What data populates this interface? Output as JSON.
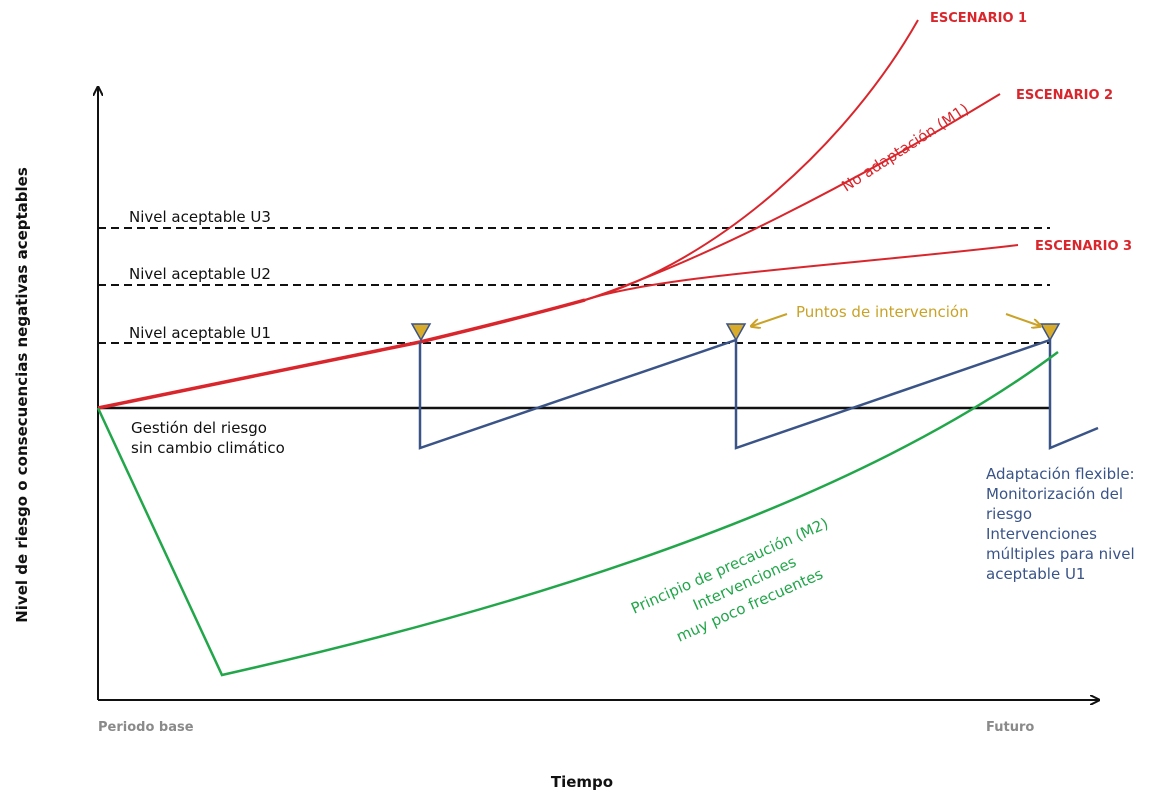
{
  "axes": {
    "y_label": "Nivel de riesgo o consecuencias negativas aceptables",
    "x_label": "Tiempo",
    "x_start": "Periodo base",
    "x_end": "Futuro"
  },
  "levels": {
    "u3": "Nivel aceptable U3",
    "u2": "Nivel aceptable U2",
    "u1": "Nivel aceptable U1"
  },
  "baseline": {
    "line1": "Gestión del riesgo",
    "line2": "sin cambio climático"
  },
  "scenarios": {
    "s1": "ESCENARIO 1",
    "s2": "ESCENARIO 2",
    "s3": "ESCENARIO 3",
    "no_adaptation": "No adaptación (M1)"
  },
  "intervention_points": "Puntos de intervención",
  "precaution": {
    "line1": "Principio de precaución (M2)",
    "line2": "Intervenciones",
    "line3": "muy poco frecuentes"
  },
  "flexible": [
    "Adaptación flexible:",
    "Monitorización del",
    "riesgo",
    "Intervenciones",
    "múltiples para nivel",
    "aceptable U1"
  ],
  "colors": {
    "scenario": "#d9262c",
    "flexible": "#3a5488",
    "precaution": "#22a64a",
    "intervention": "#c9a226",
    "axis": "#111111"
  }
}
